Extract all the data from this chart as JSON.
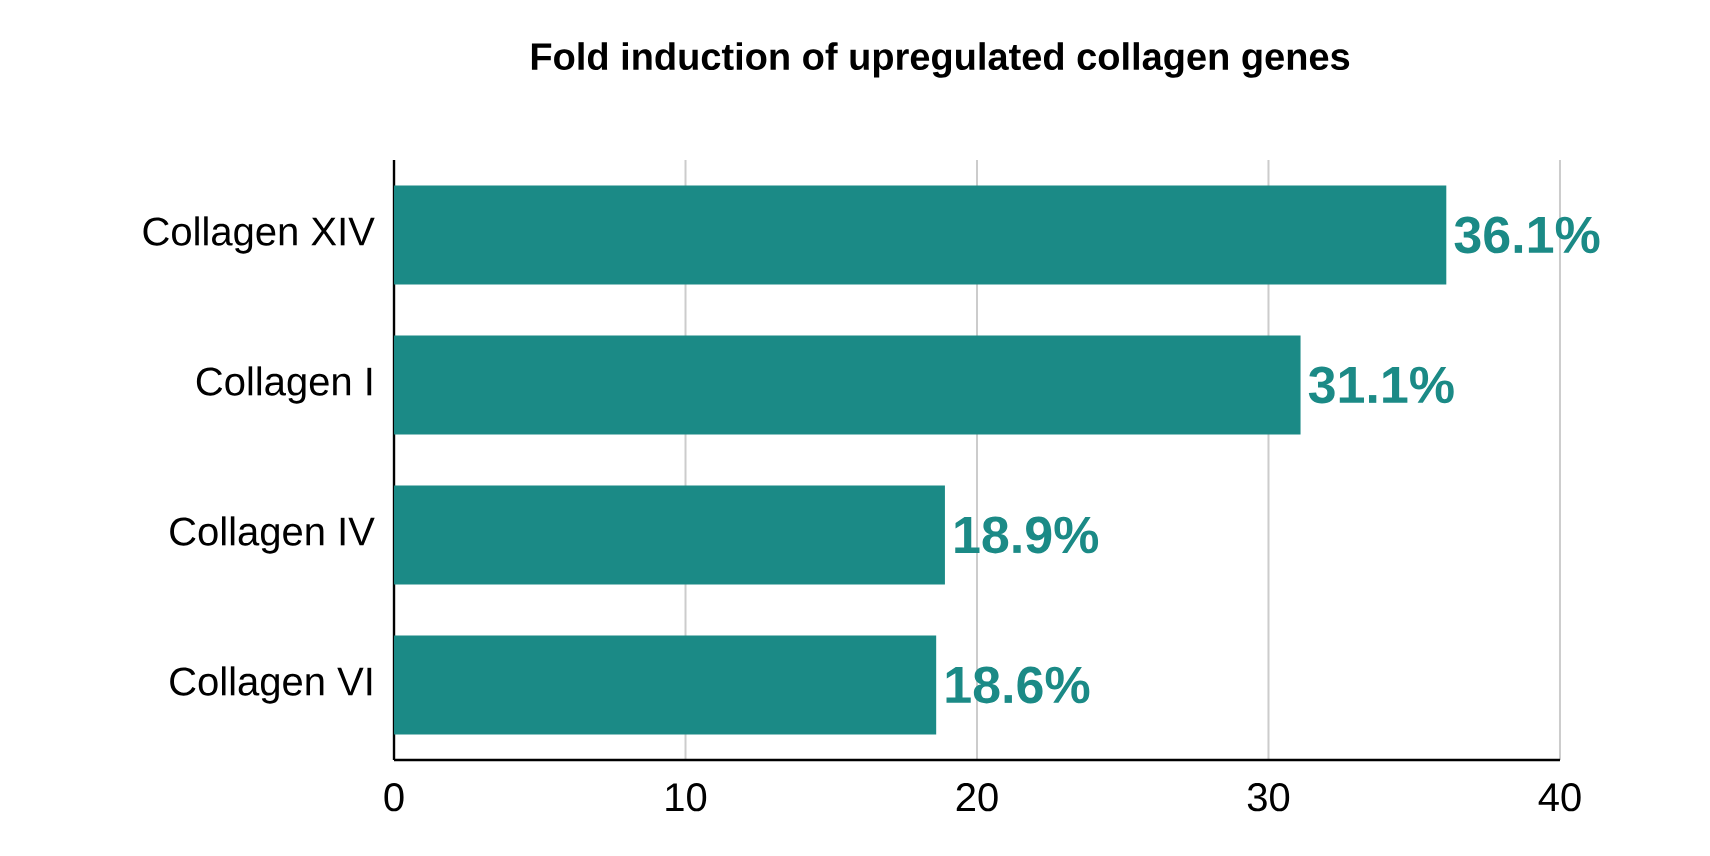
{
  "chart_data": {
    "type": "bar",
    "orientation": "horizontal",
    "title": "Fold induction of upregulated collagen genes",
    "categories": [
      "Collagen XIV",
      "Collagen I",
      "Collagen IV",
      "Collagen VI"
    ],
    "values": [
      36.1,
      31.1,
      18.9,
      18.6
    ],
    "value_labels": [
      "36.1%",
      "31.1%",
      "18.9%",
      "18.6%"
    ],
    "color": "#1b8a86",
    "xlim": [
      0,
      40
    ],
    "xticks": [
      0,
      10,
      20,
      30,
      40
    ],
    "grid": "x"
  }
}
